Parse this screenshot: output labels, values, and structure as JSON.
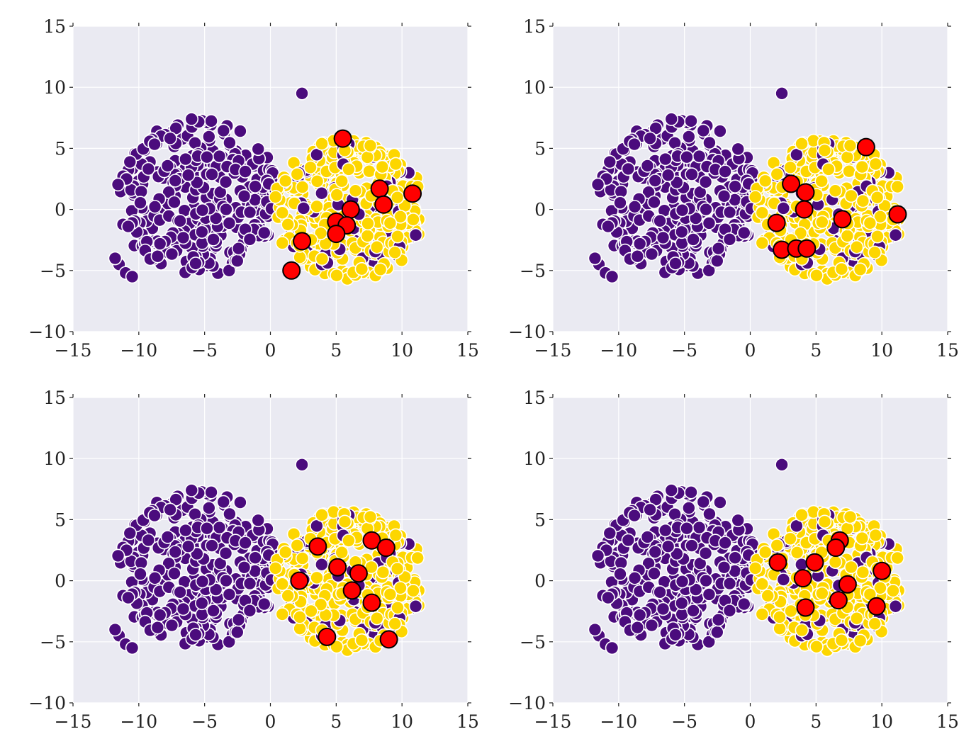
{
  "figure": {
    "background": "#ffffff",
    "plot_background": "#eaeaf2",
    "grid_color": "#ffffff",
    "purple": "#4b0c7d",
    "yellow": "#fdd600",
    "red": "#ff0000"
  },
  "chart_data": [
    {
      "type": "scatter",
      "panel": "top-left",
      "title": "",
      "xlabel": "",
      "ylabel": "",
      "xlim": [
        -15,
        15
      ],
      "ylim": [
        -10,
        15
      ],
      "xticks": [
        "−15",
        "−10",
        "−5",
        "0",
        "5",
        "10",
        "15"
      ],
      "yticks": [
        "−10",
        "−5",
        "0",
        "5",
        "10",
        "15"
      ],
      "grid": true,
      "series": [
        {
          "role": "class-0",
          "color": "#4b0c7d",
          "cluster_center": [
            -5.5,
            1.0
          ],
          "cluster_radius": 6.5,
          "outlier_points": [
            [
              2.4,
              9.5
            ],
            [
              -11.5,
              -4.5
            ],
            [
              -11.0,
              -5.2
            ],
            [
              -10.5,
              -5.5
            ],
            [
              -11.8,
              -4.0
            ]
          ]
        },
        {
          "role": "class-1",
          "color": "#fdd600",
          "cluster_center": [
            6.0,
            0.0
          ],
          "cluster_radius": 5.8
        },
        {
          "role": "selected",
          "color": "#ff0000",
          "points": [
            [
              5.5,
              5.8
            ],
            [
              8.3,
              1.7
            ],
            [
              10.8,
              1.3
            ],
            [
              8.6,
              0.4
            ],
            [
              6.1,
              0.0
            ],
            [
              5.0,
              -1.0
            ],
            [
              5.8,
              -1.3
            ],
            [
              5.0,
              -2.0
            ],
            [
              2.4,
              -2.6
            ],
            [
              1.6,
              -5.0
            ]
          ]
        }
      ]
    },
    {
      "type": "scatter",
      "panel": "top-right",
      "title": "",
      "xlabel": "",
      "ylabel": "",
      "xlim": [
        -15,
        15
      ],
      "ylim": [
        -10,
        15
      ],
      "xticks": [
        "−15",
        "−10",
        "−5",
        "0",
        "5",
        "10",
        "15"
      ],
      "yticks": [
        "−10",
        "−5",
        "0",
        "5",
        "10",
        "15"
      ],
      "grid": true,
      "series": [
        {
          "role": "class-0",
          "color": "#4b0c7d",
          "cluster_center": [
            -5.5,
            1.0
          ],
          "cluster_radius": 6.5,
          "outlier_points": [
            [
              2.4,
              9.5
            ],
            [
              -11.5,
              -4.5
            ],
            [
              -11.0,
              -5.2
            ],
            [
              -10.5,
              -5.5
            ],
            [
              -11.8,
              -4.0
            ]
          ]
        },
        {
          "role": "class-1",
          "color": "#fdd600",
          "cluster_center": [
            6.0,
            0.0
          ],
          "cluster_radius": 5.8
        },
        {
          "role": "selected",
          "color": "#ff0000",
          "points": [
            [
              8.8,
              5.1
            ],
            [
              3.1,
              2.1
            ],
            [
              4.2,
              1.4
            ],
            [
              4.1,
              0.0
            ],
            [
              11.2,
              -0.4
            ],
            [
              7.0,
              -0.8
            ],
            [
              2.0,
              -1.1
            ],
            [
              2.4,
              -3.3
            ],
            [
              3.5,
              -3.2
            ],
            [
              4.3,
              -3.2
            ]
          ]
        }
      ]
    },
    {
      "type": "scatter",
      "panel": "bottom-left",
      "title": "",
      "xlabel": "",
      "ylabel": "",
      "xlim": [
        -15,
        15
      ],
      "ylim": [
        -10,
        15
      ],
      "xticks": [
        "−15",
        "−10",
        "−5",
        "0",
        "5",
        "10",
        "15"
      ],
      "yticks": [
        "−10",
        "−5",
        "0",
        "5",
        "10",
        "15"
      ],
      "grid": true,
      "series": [
        {
          "role": "class-0",
          "color": "#4b0c7d",
          "cluster_center": [
            -5.5,
            1.0
          ],
          "cluster_radius": 6.5,
          "outlier_points": [
            [
              2.4,
              9.5
            ],
            [
              -11.5,
              -4.5
            ],
            [
              -11.0,
              -5.2
            ],
            [
              -10.5,
              -5.5
            ],
            [
              -11.8,
              -4.0
            ]
          ]
        },
        {
          "role": "class-1",
          "color": "#fdd600",
          "cluster_center": [
            6.0,
            0.0
          ],
          "cluster_radius": 5.8
        },
        {
          "role": "selected",
          "color": "#ff0000",
          "points": [
            [
              3.6,
              2.8
            ],
            [
              7.7,
              3.3
            ],
            [
              8.8,
              2.7
            ],
            [
              5.1,
              1.1
            ],
            [
              6.7,
              0.6
            ],
            [
              2.2,
              0.0
            ],
            [
              6.2,
              -0.8
            ],
            [
              7.7,
              -1.8
            ],
            [
              4.3,
              -4.6
            ],
            [
              9.0,
              -4.8
            ]
          ]
        }
      ]
    },
    {
      "type": "scatter",
      "panel": "bottom-right",
      "title": "",
      "xlabel": "",
      "ylabel": "",
      "xlim": [
        -15,
        15
      ],
      "ylim": [
        -10,
        15
      ],
      "xticks": [
        "−15",
        "−10",
        "−5",
        "0",
        "5",
        "10",
        "15"
      ],
      "yticks": [
        "−10",
        "−5",
        "0",
        "5",
        "10",
        "15"
      ],
      "grid": true,
      "series": [
        {
          "role": "class-0",
          "color": "#4b0c7d",
          "cluster_center": [
            -5.5,
            1.0
          ],
          "cluster_radius": 6.5,
          "outlier_points": [
            [
              2.4,
              9.5
            ],
            [
              -11.5,
              -4.5
            ],
            [
              -11.0,
              -5.2
            ],
            [
              -10.5,
              -5.5
            ],
            [
              -11.8,
              -4.0
            ]
          ]
        },
        {
          "role": "class-1",
          "color": "#fdd600",
          "cluster_center": [
            6.0,
            0.0
          ],
          "cluster_radius": 5.8
        },
        {
          "role": "selected",
          "color": "#ff0000",
          "points": [
            [
              6.8,
              3.3
            ],
            [
              6.5,
              2.7
            ],
            [
              2.1,
              1.5
            ],
            [
              4.9,
              1.5
            ],
            [
              10.0,
              0.8
            ],
            [
              4.0,
              0.2
            ],
            [
              7.4,
              -0.3
            ],
            [
              6.7,
              -1.6
            ],
            [
              4.2,
              -2.2
            ],
            [
              9.6,
              -2.1
            ]
          ]
        }
      ]
    }
  ]
}
